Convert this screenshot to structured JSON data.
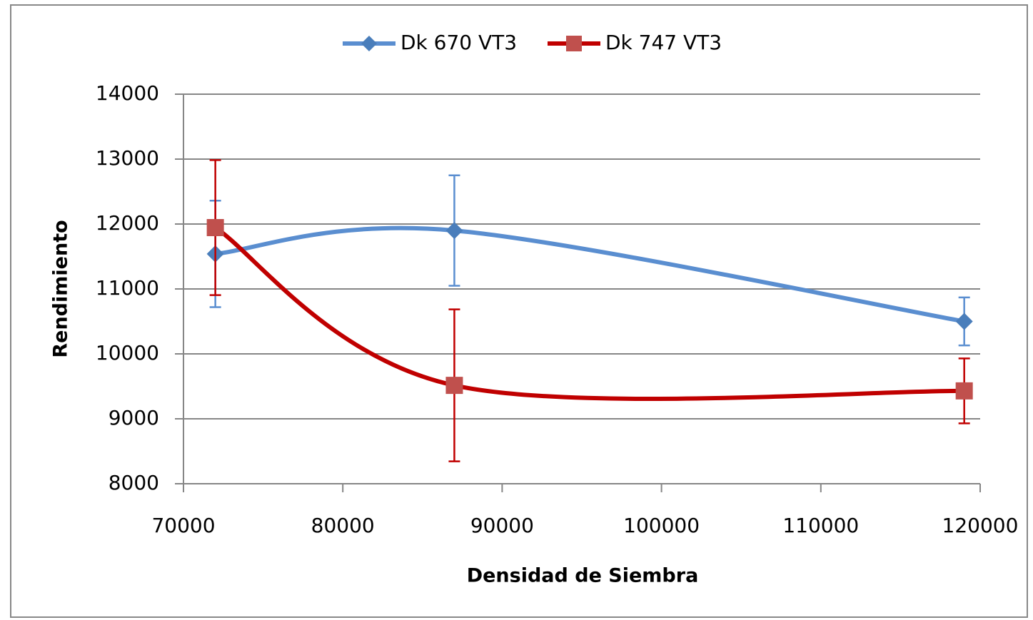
{
  "chart_data": {
    "type": "line",
    "x_label": "Densidad de Siembra",
    "y_label": "Rendimiento",
    "series": [
      {
        "name": "Dk 670 VT3",
        "color": "#5a8ed0",
        "marker_color": "#4a7ebb",
        "marker": "diamond",
        "x": [
          72000,
          87000,
          119000
        ],
        "values": [
          11540,
          11900,
          10500
        ],
        "errors": [
          820,
          850,
          370
        ]
      },
      {
        "name": "Dk 747 VT3",
        "color": "#c00000",
        "marker_color": "#c0504d",
        "marker": "square",
        "x": [
          72000,
          87000,
          119000
        ],
        "values": [
          11945,
          9515,
          9430
        ],
        "errors": [
          1040,
          1170,
          500
        ]
      }
    ],
    "xlim": [
      70000,
      120000
    ],
    "xticks": [
      70000,
      80000,
      90000,
      100000,
      110000,
      120000
    ],
    "ylim": [
      8000,
      14000
    ],
    "yticks": [
      8000,
      9000,
      10000,
      11000,
      12000,
      13000,
      14000
    ],
    "grid": true,
    "smooth": true,
    "legend": "top"
  }
}
